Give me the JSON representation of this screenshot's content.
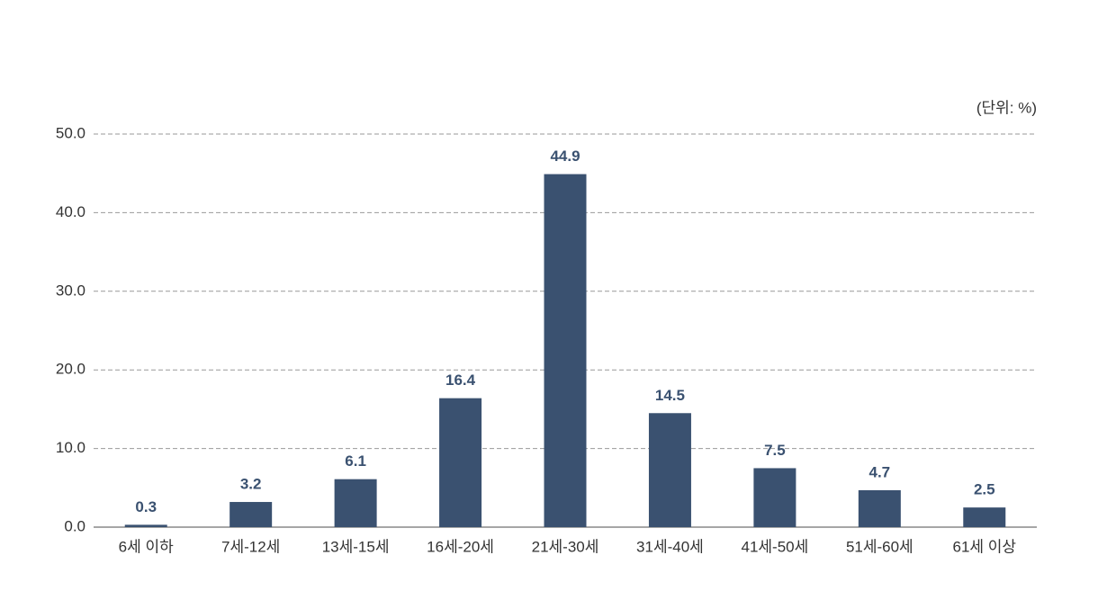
{
  "chart_data": {
    "type": "bar",
    "unit_note": "(단위: %)",
    "categories": [
      "6세 이하",
      "7세-12세",
      "13세-15세",
      "16세-20세",
      "21세-30세",
      "31세-40세",
      "41세-50세",
      "51세-60세",
      "61세 이상"
    ],
    "values": [
      0.3,
      3.2,
      6.1,
      16.4,
      44.9,
      14.5,
      7.5,
      4.7,
      2.5
    ],
    "color": "#3a5170",
    "ylim": [
      0,
      50
    ],
    "yticks": [
      {
        "value": 0,
        "label": "0.0"
      },
      {
        "value": 10,
        "label": "10.0"
      },
      {
        "value": 20,
        "label": "20.0"
      },
      {
        "value": 30,
        "label": "30.0"
      },
      {
        "value": 40,
        "label": "40.0"
      },
      {
        "value": 50,
        "label": "50.0"
      }
    ],
    "grid": true
  }
}
